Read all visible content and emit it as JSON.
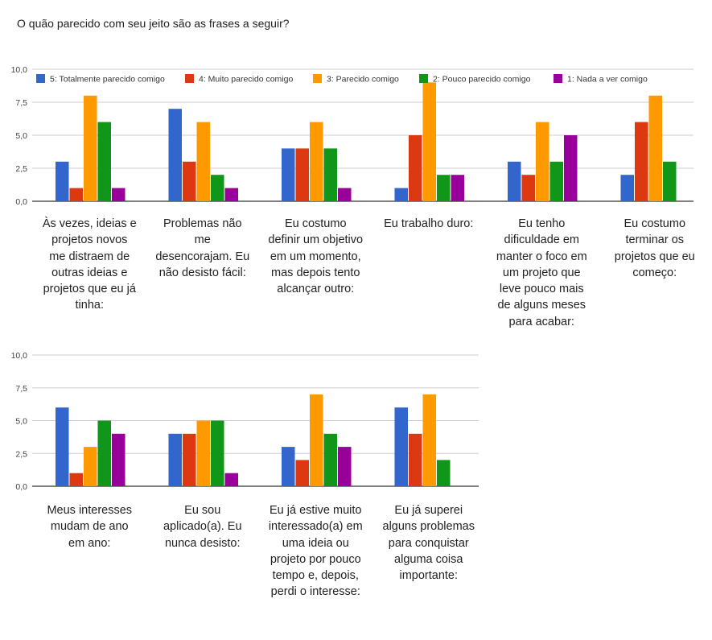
{
  "title": "O quão parecido com seu jeito são as frases a seguir?",
  "colors": [
    "#3366cc",
    "#dc3912",
    "#ff9900",
    "#109618",
    "#990099"
  ],
  "chart_data": {
    "type": "bar",
    "title": "O quão parecido com seu jeito são as frases a seguir?",
    "ylim": [
      0,
      10
    ],
    "y_ticks": [
      "0,0",
      "2,5",
      "5,0",
      "7,5",
      "10,0"
    ],
    "legend_position": "top",
    "grid": true,
    "series_names": [
      "5: Totalmente parecido comigo",
      "4: Muito parecido comigo",
      "3: Parecido comigo",
      "2: Pouco parecido comigo",
      "1: Nada a ver comigo"
    ],
    "panels": [
      {
        "categories": [
          "Às vezes, ideias e projetos novos me distraem de outras ideias e projetos que eu já tinha:",
          "Problemas não me desencorajam. Eu não desisto fácil:",
          "Eu costumo definir um objetivo em um momento, mas depois tento alcançar outro:",
          "Eu trabalho duro:",
          "Eu tenho dificuldade em manter o foco em um projeto que leve pouco mais de alguns meses para acabar:",
          "Eu costumo terminar os projetos que eu começo:"
        ],
        "values": [
          [
            3,
            1,
            8,
            6,
            1
          ],
          [
            7,
            3,
            6,
            2,
            1
          ],
          [
            4,
            4,
            6,
            4,
            1
          ],
          [
            1,
            5,
            9,
            2,
            2
          ],
          [
            3,
            2,
            6,
            3,
            5
          ],
          [
            2,
            6,
            8,
            3,
            0
          ]
        ]
      },
      {
        "categories": [
          "Meus interesses mudam de ano em ano:",
          "Eu sou aplicado(a). Eu nunca desisto:",
          "Eu já estive muito interessado(a) em uma ideia ou projeto por pouco tempo e, depois, perdi o interesse:",
          "Eu já superei alguns problemas para conquistar alguma coisa importante:"
        ],
        "values": [
          [
            6,
            1,
            3,
            5,
            4
          ],
          [
            4,
            4,
            5,
            5,
            1
          ],
          [
            3,
            2,
            7,
            4,
            3
          ],
          [
            6,
            4,
            7,
            2,
            0
          ]
        ]
      }
    ]
  }
}
